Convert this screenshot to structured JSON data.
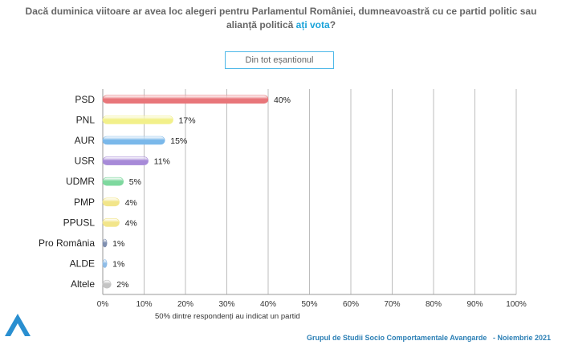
{
  "header": {
    "question_part1": "Dacă duminica viitoare ar avea loc alegeri pentru Parlamentul României, dumneavoastră cu ce partid politic sau",
    "question_part2": "alianță politică ",
    "question_highlight": "ați vota",
    "question_end": "?"
  },
  "filter": {
    "label": "Din tot eșantionul"
  },
  "footnote": "50% dintre respondenți au indicat un partid",
  "footer": {
    "source": "Grupul de Studii Socio Comportamentale Avangarde",
    "separator": "-",
    "date": "Noiembrie 2021"
  },
  "colors": {
    "PSD": "#e8767a",
    "PNL": "#f2f08a",
    "AUR": "#7ab8ea",
    "USR": "#a78ad8",
    "UDMR": "#7ed89e",
    "PMP": "#f2e58a",
    "PPUSL": "#f2e58a",
    "Pro România": "#7f8fb0",
    "ALDE": "#8fbde8",
    "Altele": "#c4c4c4",
    "accent": "#1aa3d9",
    "logo": "#2a8fd0"
  },
  "chart_data": {
    "type": "bar",
    "orientation": "horizontal",
    "categories": [
      "PSD",
      "PNL",
      "AUR",
      "USR",
      "UDMR",
      "PMP",
      "PPUSL",
      "Pro România",
      "ALDE",
      "Altele"
    ],
    "values": [
      40,
      17,
      15,
      11,
      5,
      4,
      4,
      1,
      1,
      2
    ],
    "value_labels": [
      "40%",
      "17%",
      "15%",
      "11%",
      "5%",
      "4%",
      "4%",
      "1%",
      "1%",
      "2%"
    ],
    "xlim": [
      0,
      100
    ],
    "x_ticks": [
      "0%",
      "10%",
      "20%",
      "30%",
      "40%",
      "50%",
      "60%",
      "70%",
      "80%",
      "90%",
      "100%"
    ],
    "grid": true,
    "xlabel": "",
    "ylabel": ""
  }
}
